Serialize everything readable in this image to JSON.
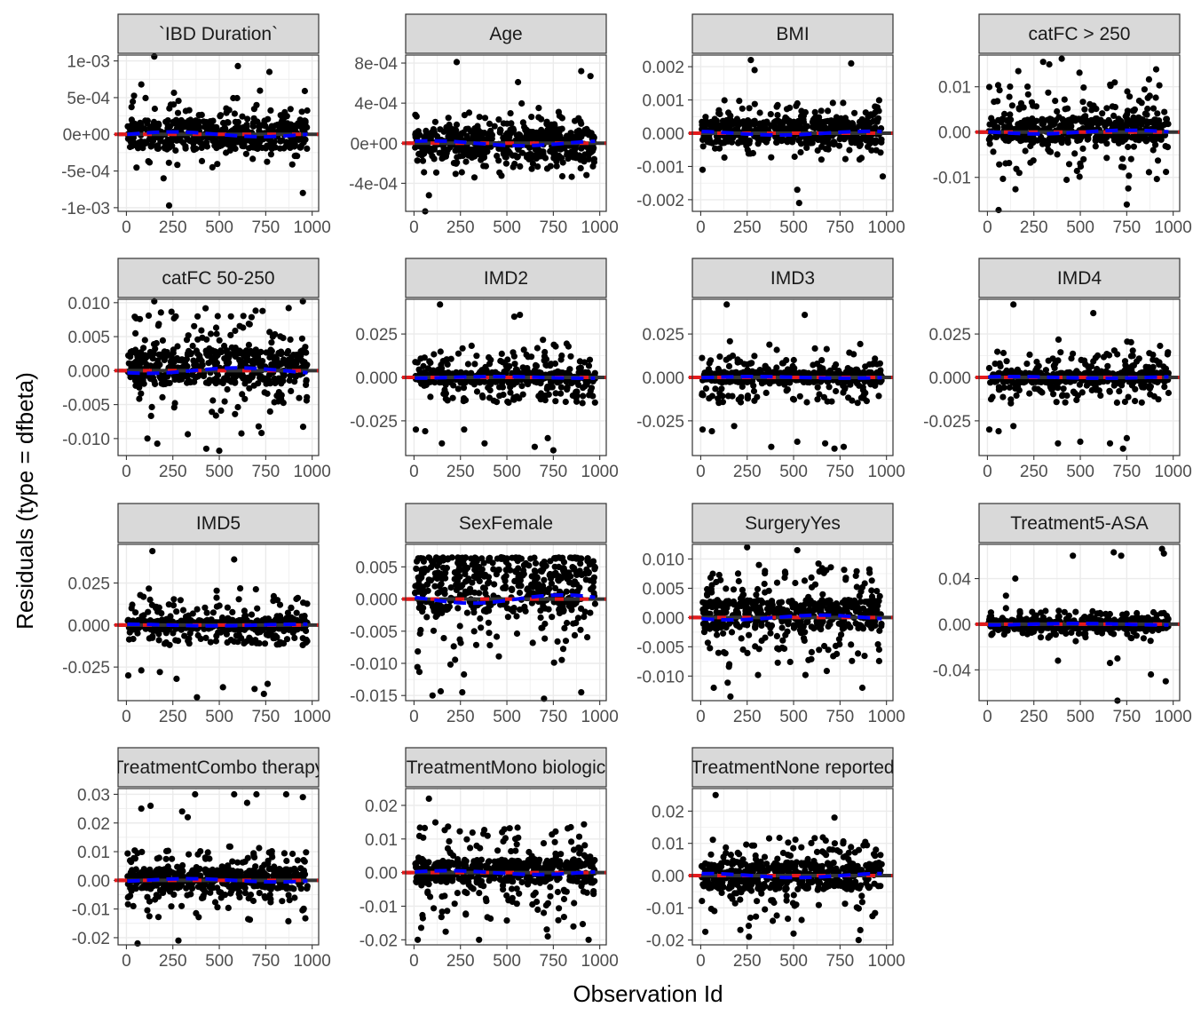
{
  "figure": {
    "xlabel": "Observation Id",
    "ylabel": "Residuals (type = dfbeta)"
  },
  "colors": {
    "point": "#000000",
    "loess_line": "#333333",
    "zero_line": "#e41a1c",
    "smooth_line": "#0000ff",
    "strip_fill": "#d9d9d9",
    "grid": "#ebebeb"
  },
  "chart_data": {
    "type": "scatter",
    "layout": "facet_wrap, 4 columns",
    "xlim": [
      0,
      1000
    ],
    "x_ticks": [
      0,
      250,
      500,
      750,
      1000
    ],
    "x_tick_labels": [
      "0",
      "250",
      "500",
      "750",
      "1000"
    ],
    "panels": [
      {
        "title": "`IBD Duration`",
        "ylim": [
          -0.00105,
          0.00108
        ],
        "y_ticks": [
          -0.001,
          -0.0005,
          0,
          0.0005,
          0.001
        ],
        "y_tick_labels": [
          "-1e-03",
          "-5e-04",
          "0e+00",
          "5e-04",
          "1e-03"
        ],
        "core": [
          -0.0002,
          0.0002
        ],
        "spread": [
          -0.0005,
          0.0006
        ],
        "extremes": [
          [
            150,
            0.00106
          ],
          [
            80,
            0.00068
          ],
          [
            600,
            0.00093
          ],
          [
            770,
            0.00085
          ],
          [
            230,
            -0.00097
          ],
          [
            950,
            -0.0008
          ],
          [
            200,
            -0.0006
          ]
        ]
      },
      {
        "title": "Age",
        "ylim": [
          -0.00068,
          0.00088
        ],
        "y_ticks": [
          -0.0004,
          0,
          0.0004,
          0.0008
        ],
        "y_tick_labels": [
          "-4e-04",
          "0e+00",
          "4e-04",
          "8e-04"
        ],
        "core": [
          -0.00015,
          0.00015
        ],
        "spread": [
          -0.00035,
          0.0004
        ],
        "extremes": [
          [
            230,
            0.00081
          ],
          [
            900,
            0.00072
          ],
          [
            950,
            0.00067
          ],
          [
            60,
            -0.00068
          ],
          [
            80,
            -0.00052
          ],
          [
            560,
            0.00061
          ]
        ]
      },
      {
        "title": "BMI",
        "ylim": [
          -0.00235,
          0.00235
        ],
        "y_ticks": [
          -0.002,
          -0.001,
          0,
          0.001,
          0.002
        ],
        "y_tick_labels": [
          "-0.002",
          "-0.001",
          "0.000",
          "0.001",
          "0.002"
        ],
        "core": [
          -0.0003,
          0.0004
        ],
        "spread": [
          -0.0009,
          0.001
        ],
        "extremes": [
          [
            270,
            0.0022
          ],
          [
            810,
            0.0021
          ],
          [
            290,
            0.0019
          ],
          [
            530,
            -0.0021
          ],
          [
            520,
            -0.0017
          ],
          [
            10,
            -0.0011
          ],
          [
            980,
            -0.0013
          ]
        ]
      },
      {
        "title": "catFC > 250",
        "ylim": [
          -0.0175,
          0.017
        ],
        "y_ticks": [
          -0.01,
          0,
          0.01
        ],
        "y_tick_labels": [
          "-0.01",
          "0.00",
          "0.01"
        ],
        "core": [
          -0.002,
          0.003
        ],
        "spread": [
          -0.013,
          0.015
        ],
        "extremes": [
          [
            400,
            0.0162
          ],
          [
            60,
            -0.0172
          ],
          [
            750,
            -0.016
          ],
          [
            300,
            0.0155
          ]
        ]
      },
      {
        "title": "catFC 50-250",
        "ylim": [
          -0.0125,
          0.0105
        ],
        "y_ticks": [
          -0.01,
          -0.005,
          0,
          0.005,
          0.01
        ],
        "y_tick_labels": [
          "-0.010",
          "-0.005",
          "0.000",
          "0.005",
          "0.010"
        ],
        "core": [
          -0.002,
          0.003
        ],
        "spread": [
          -0.011,
          0.0095
        ],
        "extremes": [
          [
            150,
            0.0102
          ],
          [
            950,
            0.0102
          ],
          [
            430,
            -0.0115
          ],
          [
            500,
            -0.0118
          ]
        ]
      },
      {
        "title": "IMD2",
        "ylim": [
          -0.045,
          0.045
        ],
        "y_ticks": [
          -0.025,
          0,
          0.025
        ],
        "y_tick_labels": [
          "-0.025",
          "0.000",
          "0.025"
        ],
        "core": [
          -0.003,
          0.003
        ],
        "spread": [
          -0.015,
          0.022
        ],
        "extremes": [
          [
            140,
            0.042
          ],
          [
            540,
            0.035
          ],
          [
            570,
            0.036
          ],
          [
            10,
            -0.03
          ],
          [
            60,
            -0.031
          ],
          [
            150,
            -0.038
          ],
          [
            380,
            -0.038
          ],
          [
            650,
            -0.04
          ],
          [
            750,
            -0.042
          ],
          [
            270,
            -0.03
          ],
          [
            720,
            -0.035
          ]
        ]
      },
      {
        "title": "IMD3",
        "ylim": [
          -0.045,
          0.045
        ],
        "y_ticks": [
          -0.025,
          0,
          0.025
        ],
        "y_tick_labels": [
          "-0.025",
          "0.000",
          "0.025"
        ],
        "core": [
          -0.003,
          0.003
        ],
        "spread": [
          -0.015,
          0.022
        ],
        "extremes": [
          [
            140,
            0.042
          ],
          [
            560,
            0.036
          ],
          [
            10,
            -0.03
          ],
          [
            60,
            -0.031
          ],
          [
            180,
            -0.028
          ],
          [
            380,
            -0.04
          ],
          [
            520,
            -0.037
          ],
          [
            670,
            -0.038
          ],
          [
            720,
            -0.041
          ],
          [
            770,
            -0.04
          ]
        ]
      },
      {
        "title": "IMD4",
        "ylim": [
          -0.045,
          0.045
        ],
        "y_ticks": [
          -0.025,
          0,
          0.025
        ],
        "y_tick_labels": [
          "-0.025",
          "0.000",
          "0.025"
        ],
        "core": [
          -0.003,
          0.003
        ],
        "spread": [
          -0.015,
          0.022
        ],
        "extremes": [
          [
            140,
            0.042
          ],
          [
            570,
            0.037
          ],
          [
            10,
            -0.03
          ],
          [
            60,
            -0.031
          ],
          [
            140,
            -0.028
          ],
          [
            380,
            -0.038
          ],
          [
            500,
            -0.037
          ],
          [
            660,
            -0.038
          ],
          [
            730,
            -0.041
          ],
          [
            750,
            -0.035
          ]
        ]
      },
      {
        "title": "IMD5",
        "ylim": [
          -0.045,
          0.048
        ],
        "y_ticks": [
          -0.025,
          0,
          0.025
        ],
        "y_tick_labels": [
          "-0.025",
          "0.000",
          "0.025"
        ],
        "core": [
          -0.003,
          0.003
        ],
        "spread": [
          -0.012,
          0.022
        ],
        "extremes": [
          [
            140,
            0.044
          ],
          [
            580,
            0.039
          ],
          [
            10,
            -0.03
          ],
          [
            80,
            -0.027
          ],
          [
            180,
            -0.028
          ],
          [
            380,
            -0.043
          ],
          [
            520,
            -0.037
          ],
          [
            690,
            -0.038
          ],
          [
            740,
            -0.041
          ],
          [
            760,
            -0.035
          ],
          [
            270,
            -0.032
          ]
        ]
      },
      {
        "title": "SexFemale",
        "ylim": [
          -0.0158,
          0.0085
        ],
        "y_ticks": [
          -0.015,
          -0.01,
          -0.005,
          0,
          0.005
        ],
        "y_tick_labels": [
          "-0.015",
          "-0.010",
          "-0.005",
          "0.000",
          "0.005"
        ],
        "core": [
          -0.002,
          0.006
        ],
        "spread": [
          -0.0145,
          0.0065
        ],
        "extremes": [
          [
            100,
            -0.015
          ],
          [
            700,
            -0.0155
          ],
          [
            260,
            -0.0145
          ],
          [
            900,
            -0.0145
          ]
        ]
      },
      {
        "title": "SurgeryYes",
        "ylim": [
          -0.0142,
          0.0125
        ],
        "y_ticks": [
          -0.01,
          -0.005,
          0,
          0.005,
          0.01
        ],
        "y_tick_labels": [
          "-0.010",
          "-0.005",
          "0.000",
          "0.005",
          "0.010"
        ],
        "core": [
          -0.002,
          0.003
        ],
        "spread": [
          -0.0115,
          0.0095
        ],
        "extremes": [
          [
            250,
            0.012
          ],
          [
            520,
            0.0115
          ],
          [
            160,
            -0.0135
          ],
          [
            70,
            -0.012
          ],
          [
            870,
            -0.012
          ]
        ]
      },
      {
        "title": "Treatment5-ASA",
        "ylim": [
          -0.067,
          0.07
        ],
        "y_ticks": [
          -0.04,
          0,
          0.04
        ],
        "y_tick_labels": [
          "-0.04",
          "0.00",
          "0.04"
        ],
        "core": [
          -0.004,
          0.004
        ],
        "spread": [
          -0.015,
          0.012
        ],
        "extremes": [
          [
            150,
            0.04
          ],
          [
            100,
            0.025
          ],
          [
            460,
            0.06
          ],
          [
            680,
            0.063
          ],
          [
            720,
            0.06
          ],
          [
            940,
            0.066
          ],
          [
            950,
            0.062
          ],
          [
            700,
            -0.067
          ],
          [
            960,
            -0.05
          ],
          [
            880,
            -0.044
          ],
          [
            660,
            -0.034
          ],
          [
            700,
            -0.03
          ],
          [
            380,
            -0.032
          ],
          [
            100,
            0.014
          ]
        ]
      },
      {
        "title": "TreatmentCombo therapy",
        "ylim": [
          -0.0225,
          0.032
        ],
        "y_ticks": [
          -0.02,
          -0.01,
          0,
          0.01,
          0.02,
          0.03
        ],
        "y_tick_labels": [
          "-0.02",
          "-0.01",
          "0.00",
          "0.01",
          "0.02",
          "0.03"
        ],
        "core": [
          -0.003,
          0.004
        ],
        "spread": [
          -0.015,
          0.012
        ],
        "extremes": [
          [
            80,
            0.025
          ],
          [
            130,
            0.026
          ],
          [
            370,
            0.03
          ],
          [
            580,
            0.03
          ],
          [
            700,
            0.03
          ],
          [
            860,
            0.03
          ],
          [
            950,
            0.029
          ],
          [
            300,
            0.024
          ],
          [
            280,
            -0.021
          ],
          [
            60,
            -0.022
          ],
          [
            330,
            0.022
          ],
          [
            650,
            0.027
          ]
        ]
      },
      {
        "title": "TreatmentMono biologic",
        "ylim": [
          -0.0215,
          0.025
        ],
        "y_ticks": [
          -0.02,
          -0.01,
          0,
          0.01,
          0.02
        ],
        "y_tick_labels": [
          "-0.02",
          "-0.01",
          "0.00",
          "0.01",
          "0.02"
        ],
        "core": [
          -0.003,
          0.004
        ],
        "spread": [
          -0.018,
          0.015
        ],
        "extremes": [
          [
            80,
            0.022
          ],
          [
            20,
            -0.02
          ],
          [
            350,
            -0.02
          ],
          [
            720,
            -0.019
          ],
          [
            940,
            -0.02
          ]
        ]
      },
      {
        "title": "TreatmentNone reported",
        "ylim": [
          -0.0215,
          0.027
        ],
        "y_ticks": [
          -0.02,
          -0.01,
          0,
          0.01,
          0.02
        ],
        "y_tick_labels": [
          "-0.02",
          "-0.01",
          "0.00",
          "0.01",
          "0.02"
        ],
        "core": [
          -0.004,
          0.004
        ],
        "spread": [
          -0.018,
          0.012
        ],
        "extremes": [
          [
            80,
            0.025
          ],
          [
            720,
            0.018
          ],
          [
            850,
            -0.02
          ],
          [
            260,
            -0.019
          ],
          [
            500,
            -0.018
          ]
        ]
      }
    ]
  }
}
